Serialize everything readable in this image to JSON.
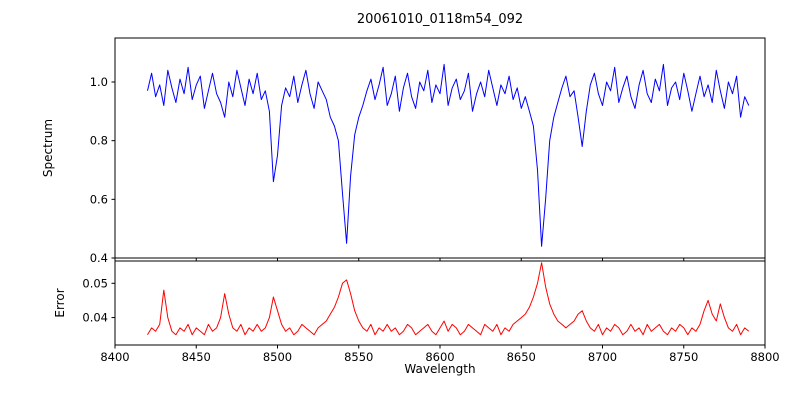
{
  "figure": {
    "title": "20061010_0118m54_092",
    "xlabel": "Wavelength",
    "ylabel_top": "Spectrum",
    "ylabel_bottom": "Error",
    "background": "#ffffff"
  },
  "chart_data": [
    {
      "type": "line",
      "name": "spectrum",
      "title": "20061010_0118m54_092",
      "ylabel": "Spectrum",
      "xlabel": "",
      "legend": "none",
      "grid": false,
      "color": "#0000ff",
      "xlim": [
        8400,
        8800
      ],
      "ylim": [
        0.4,
        1.15
      ],
      "xtick_values": [
        8400,
        8450,
        8500,
        8550,
        8600,
        8650,
        8700,
        8750,
        8800
      ],
      "xtick_labels": [
        "8400",
        "8450",
        "8500",
        "8550",
        "8600",
        "8650",
        "8700",
        "8750",
        "8800"
      ],
      "ytick_values": [
        0.4,
        0.6,
        0.8,
        1.0
      ],
      "ytick_labels": [
        "0.4",
        "0.6",
        "0.8",
        "1.0"
      ],
      "x_start": 8420,
      "x_step": 2.5,
      "values": [
        0.97,
        1.03,
        0.95,
        0.99,
        0.92,
        1.04,
        0.98,
        0.93,
        1.01,
        0.96,
        1.05,
        0.94,
        0.99,
        1.02,
        0.91,
        0.97,
        1.03,
        0.96,
        0.93,
        0.88,
        1.0,
        0.95,
        1.04,
        0.98,
        0.92,
        1.01,
        0.96,
        1.03,
        0.94,
        0.97,
        0.9,
        0.66,
        0.75,
        0.92,
        0.98,
        0.95,
        1.02,
        0.93,
        0.99,
        1.04,
        0.96,
        0.91,
        1.0,
        0.97,
        0.94,
        0.88,
        0.85,
        0.8,
        0.62,
        0.45,
        0.68,
        0.82,
        0.88,
        0.92,
        0.97,
        1.01,
        0.94,
        0.99,
        1.05,
        0.92,
        0.96,
        1.02,
        0.9,
        0.98,
        1.03,
        0.95,
        0.91,
        1.0,
        0.97,
        1.04,
        0.93,
        0.99,
        0.96,
        1.06,
        0.92,
        0.98,
        1.01,
        0.94,
        0.97,
        1.03,
        0.9,
        0.96,
        1.0,
        0.95,
        1.04,
        0.98,
        0.92,
        0.99,
        0.96,
        1.02,
        0.94,
        0.98,
        0.91,
        0.95,
        0.9,
        0.85,
        0.7,
        0.44,
        0.6,
        0.8,
        0.88,
        0.93,
        0.98,
        1.02,
        0.95,
        0.97,
        0.88,
        0.78,
        0.9,
        0.99,
        1.03,
        0.96,
        0.92,
        1.0,
        0.97,
        1.05,
        0.93,
        0.98,
        1.02,
        0.95,
        0.91,
        0.99,
        1.04,
        0.96,
        0.93,
        1.01,
        0.97,
        1.06,
        0.92,
        0.98,
        1.0,
        0.94,
        1.03,
        0.97,
        0.9,
        0.96,
        1.02,
        0.95,
        0.99,
        0.93,
        1.04,
        0.97,
        0.91,
        1.0,
        0.96,
        1.02,
        0.88,
        0.95,
        0.92
      ]
    },
    {
      "type": "line",
      "name": "error",
      "title": "",
      "ylabel": "Error",
      "xlabel": "Wavelength",
      "legend": "none",
      "grid": false,
      "color": "#ff0000",
      "xlim": [
        8400,
        8800
      ],
      "ylim": [
        0.032,
        0.0565
      ],
      "xtick_values": [
        8400,
        8450,
        8500,
        8550,
        8600,
        8650,
        8700,
        8750,
        8800
      ],
      "xtick_labels": [
        "8400",
        "8450",
        "8500",
        "8550",
        "8600",
        "8650",
        "8700",
        "8750",
        "8800"
      ],
      "ytick_values": [
        0.04,
        0.05
      ],
      "ytick_labels": [
        "0.04",
        "0.05"
      ],
      "x_start": 8420,
      "x_step": 2.5,
      "values": [
        0.035,
        0.037,
        0.036,
        0.038,
        0.048,
        0.04,
        0.036,
        0.035,
        0.037,
        0.036,
        0.038,
        0.035,
        0.037,
        0.036,
        0.035,
        0.038,
        0.036,
        0.037,
        0.04,
        0.047,
        0.041,
        0.037,
        0.036,
        0.038,
        0.035,
        0.037,
        0.036,
        0.038,
        0.036,
        0.037,
        0.04,
        0.046,
        0.042,
        0.038,
        0.036,
        0.037,
        0.035,
        0.036,
        0.038,
        0.037,
        0.036,
        0.035,
        0.037,
        0.038,
        0.039,
        0.041,
        0.043,
        0.046,
        0.05,
        0.051,
        0.047,
        0.042,
        0.039,
        0.037,
        0.036,
        0.038,
        0.035,
        0.037,
        0.036,
        0.038,
        0.036,
        0.037,
        0.035,
        0.036,
        0.038,
        0.037,
        0.035,
        0.036,
        0.037,
        0.038,
        0.036,
        0.035,
        0.037,
        0.039,
        0.036,
        0.038,
        0.037,
        0.035,
        0.036,
        0.038,
        0.037,
        0.036,
        0.035,
        0.038,
        0.037,
        0.036,
        0.038,
        0.035,
        0.037,
        0.036,
        0.038,
        0.039,
        0.04,
        0.041,
        0.043,
        0.046,
        0.05,
        0.056,
        0.049,
        0.044,
        0.041,
        0.039,
        0.038,
        0.037,
        0.038,
        0.039,
        0.041,
        0.042,
        0.039,
        0.037,
        0.036,
        0.038,
        0.035,
        0.037,
        0.036,
        0.038,
        0.037,
        0.035,
        0.036,
        0.038,
        0.036,
        0.037,
        0.035,
        0.038,
        0.036,
        0.037,
        0.038,
        0.036,
        0.035,
        0.037,
        0.036,
        0.038,
        0.037,
        0.035,
        0.037,
        0.036,
        0.038,
        0.042,
        0.045,
        0.041,
        0.039,
        0.044,
        0.04,
        0.037,
        0.036,
        0.038,
        0.035,
        0.037,
        0.036
      ]
    }
  ]
}
